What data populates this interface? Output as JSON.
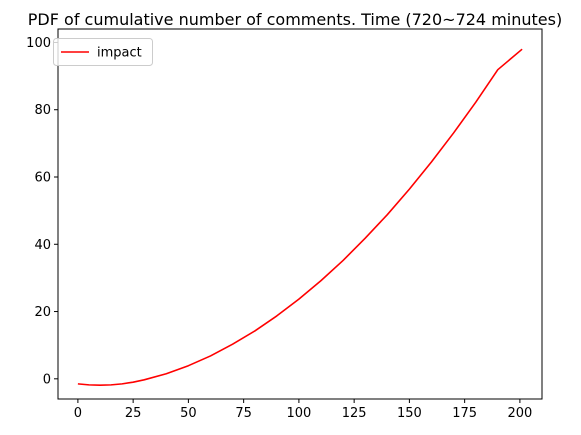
{
  "chart_data": {
    "type": "line",
    "title": "PDF of cumulative number of comments. Time (720~724 minutes)",
    "xlabel": "",
    "ylabel": "",
    "xlim": [
      -9,
      210
    ],
    "ylim": [
      -6,
      104
    ],
    "x_ticks": [
      0,
      25,
      50,
      75,
      100,
      125,
      150,
      175,
      200
    ],
    "y_ticks": [
      0,
      20,
      40,
      60,
      80,
      100
    ],
    "x_tick_labels": [
      "0",
      "25",
      "50",
      "75",
      "100",
      "125",
      "150",
      "175",
      "200"
    ],
    "y_tick_labels": [
      "0",
      "20",
      "40",
      "60",
      "80",
      "100"
    ],
    "grid": false,
    "legend_position": "top-left",
    "series": [
      {
        "name": "impact",
        "color": "#ff0000",
        "x": [
          0,
          5,
          10,
          15,
          20,
          25,
          30,
          40,
          50,
          60,
          70,
          80,
          90,
          100,
          110,
          120,
          130,
          140,
          150,
          160,
          170,
          180,
          190,
          201
        ],
        "y": [
          -1.5,
          -1.8,
          -1.9,
          -1.8,
          -1.5,
          -1.0,
          -0.3,
          1.5,
          3.9,
          6.8,
          10.3,
          14.2,
          18.7,
          23.7,
          29.2,
          35.2,
          41.8,
          48.8,
          56.4,
          64.5,
          73.1,
          82.2,
          91.9,
          98.0
        ]
      }
    ]
  }
}
